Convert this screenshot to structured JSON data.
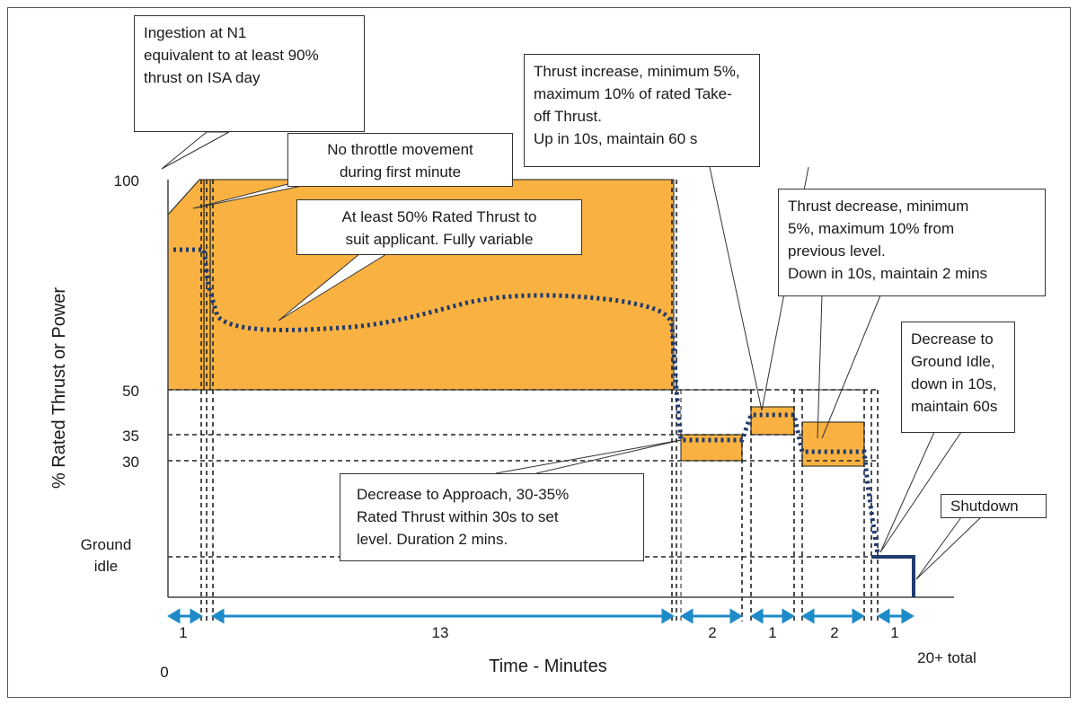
{
  "axes": {
    "y_title": "% Rated Thrust or Power",
    "x_title": "Time - Minutes",
    "y_ticks": [
      "100",
      "50",
      "35",
      "30"
    ],
    "y_ground_idle": [
      "Ground",
      "idle"
    ],
    "x_origin": "0",
    "x_end": "20+ total"
  },
  "durations": [
    "1",
    "13",
    "2",
    "1",
    "2",
    "1"
  ],
  "callouts": {
    "ingestion": "Ingestion at N1\nequivalent to at least 90%\nthrust on ISA day",
    "no_throttle": "No throttle movement\nduring first minute",
    "variable": "At least 50% Rated Thrust to\nsuit applicant. Fully variable",
    "increase": "Thrust increase, minimum 5%,\nmaximum 10% of rated Take-\noff Thrust.\nUp in 10s, maintain 60 s",
    "decrease": "Thrust decrease, minimum\n5%, maximum 10% from\nprevious level.\nDown in 10s, maintain 2 mins",
    "ground_idle": "Decrease to\nGround Idle,\ndown in 10s,\nmaintain 60s",
    "approach": "Decrease to Approach, 30-35%\nRated Thrust within 30s to set\nlevel. Duration 2 mins.",
    "shutdown": "Shutdown"
  },
  "colors": {
    "band_fill": "#F9B242",
    "profile_line": "#1F3A6E",
    "duration_arrow": "#1E8BC8",
    "axis": "#444444"
  }
}
